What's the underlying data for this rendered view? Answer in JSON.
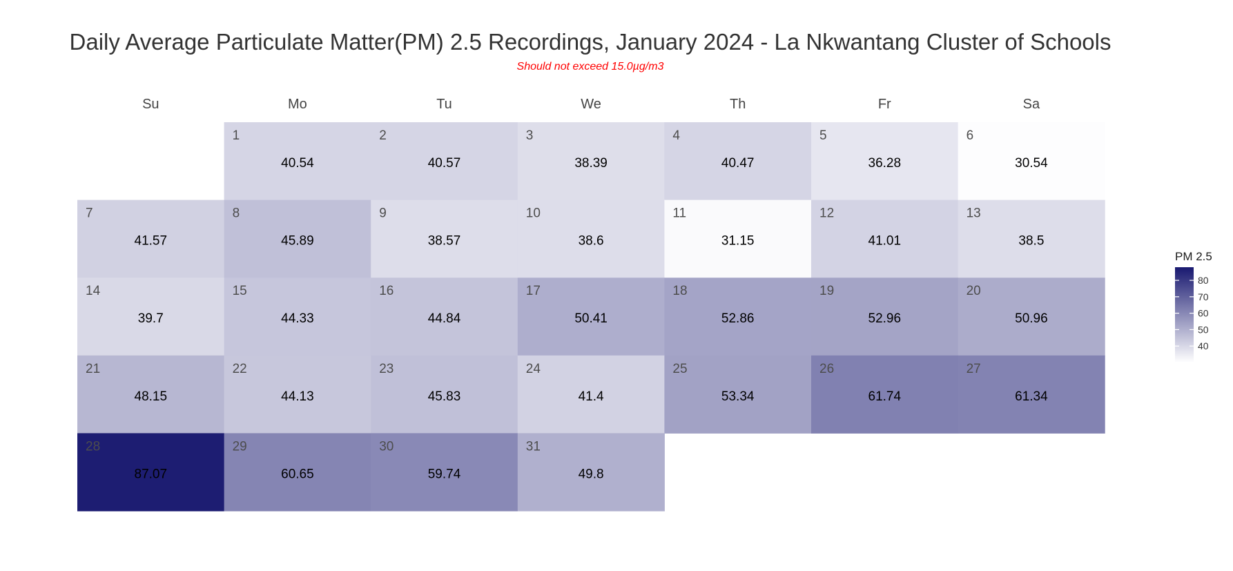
{
  "chart_data": {
    "type": "heatmap",
    "title": "Daily Average Particulate Matter(PM) 2.5 Recordings, January 2024 - La Nkwantang Cluster of Schools",
    "subtitle": "Should not exceed 15.0µg/m3",
    "weekdays": [
      "Su",
      "Mo",
      "Tu",
      "We",
      "Th",
      "Fr",
      "Sa"
    ],
    "first_weekday_index": 1,
    "days": [
      1,
      2,
      3,
      4,
      5,
      6,
      7,
      8,
      9,
      10,
      11,
      12,
      13,
      14,
      15,
      16,
      17,
      18,
      19,
      20,
      21,
      22,
      23,
      24,
      25,
      26,
      27,
      28,
      29,
      30,
      31
    ],
    "values": [
      "40.54",
      "40.57",
      "38.39",
      "40.47",
      "36.28",
      "30.54",
      "41.57",
      "45.89",
      "38.57",
      "38.6",
      "31.15",
      "41.01",
      "38.5",
      "39.7",
      "44.33",
      "44.84",
      "50.41",
      "52.86",
      "52.96",
      "50.96",
      "48.15",
      "44.13",
      "45.83",
      "41.4",
      "53.34",
      "61.74",
      "61.34",
      "87.07",
      "60.65",
      "59.74",
      "49.8"
    ],
    "legend": {
      "title": "PM 2.5",
      "ticks": [
        40,
        50,
        60,
        70,
        80
      ],
      "low_color": "#ffffff",
      "high_color": "#191970"
    },
    "color_range": [
      30,
      88
    ]
  }
}
